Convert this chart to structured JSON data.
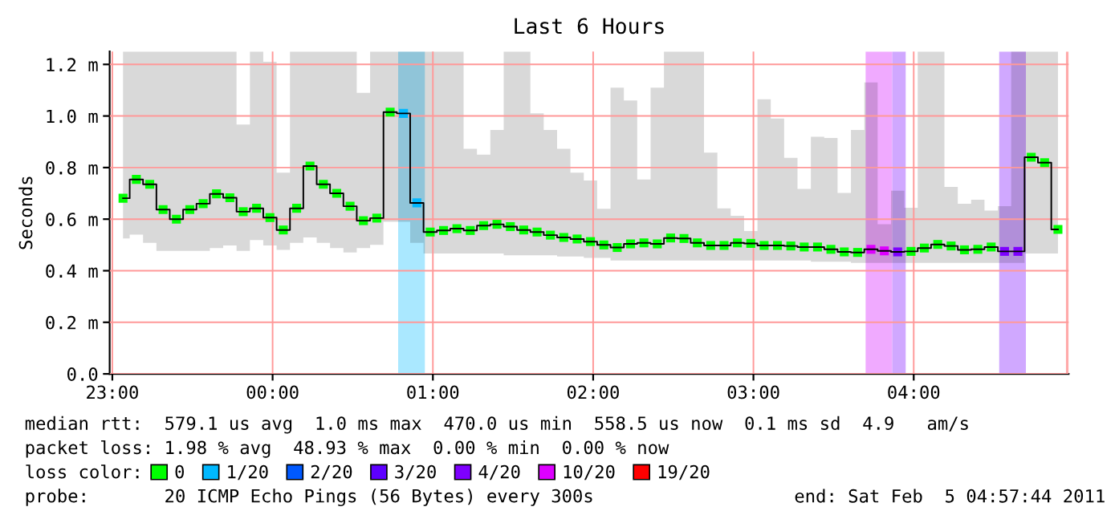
{
  "chart_data": {
    "type": "step",
    "title": "Last 6 Hours",
    "ylabel": "Seconds",
    "legend_title": "loss color:",
    "x": [
      "2011-02-04T23:04",
      "2011-02-04T23:09",
      "2011-02-04T23:14",
      "2011-02-04T23:19",
      "2011-02-04T23:24",
      "2011-02-04T23:29",
      "2011-02-04T23:34",
      "2011-02-04T23:39",
      "2011-02-04T23:44",
      "2011-02-04T23:49",
      "2011-02-04T23:54",
      "2011-02-04T23:59",
      "2011-02-05T00:04",
      "2011-02-05T00:09",
      "2011-02-05T00:14",
      "2011-02-05T00:19",
      "2011-02-05T00:24",
      "2011-02-05T00:29",
      "2011-02-05T00:34",
      "2011-02-05T00:39",
      "2011-02-05T00:44",
      "2011-02-05T00:49",
      "2011-02-05T00:54",
      "2011-02-05T00:59",
      "2011-02-05T01:04",
      "2011-02-05T01:09",
      "2011-02-05T01:14",
      "2011-02-05T01:19",
      "2011-02-05T01:24",
      "2011-02-05T01:29",
      "2011-02-05T01:34",
      "2011-02-05T01:39",
      "2011-02-05T01:44",
      "2011-02-05T01:49",
      "2011-02-05T01:54",
      "2011-02-05T01:59",
      "2011-02-05T02:04",
      "2011-02-05T02:09",
      "2011-02-05T02:14",
      "2011-02-05T02:19",
      "2011-02-05T02:24",
      "2011-02-05T02:29",
      "2011-02-05T02:34",
      "2011-02-05T02:39",
      "2011-02-05T02:44",
      "2011-02-05T02:49",
      "2011-02-05T02:54",
      "2011-02-05T02:59",
      "2011-02-05T03:04",
      "2011-02-05T03:09",
      "2011-02-05T03:14",
      "2011-02-05T03:19",
      "2011-02-05T03:24",
      "2011-02-05T03:29",
      "2011-02-05T03:34",
      "2011-02-05T03:39",
      "2011-02-05T03:44",
      "2011-02-05T03:49",
      "2011-02-05T03:54",
      "2011-02-05T03:59",
      "2011-02-05T04:04",
      "2011-02-05T04:09",
      "2011-02-05T04:14",
      "2011-02-05T04:19",
      "2011-02-05T04:24",
      "2011-02-05T04:29",
      "2011-02-05T04:34",
      "2011-02-05T04:39",
      "2011-02-05T04:44",
      "2011-02-05T04:49",
      "2011-02-05T04:54"
    ],
    "series": [
      {
        "color": "#000000",
        "values": [
          0.681,
          0.754,
          0.735,
          0.637,
          0.6,
          0.637,
          0.66,
          0.698,
          0.683,
          0.629,
          0.642,
          0.606,
          0.558,
          0.642,
          0.806,
          0.735,
          0.7,
          0.65,
          0.594,
          0.604,
          1.015,
          1.01,
          0.663,
          0.55,
          0.556,
          0.563,
          0.556,
          0.575,
          0.58,
          0.571,
          0.558,
          0.55,
          0.538,
          0.529,
          0.523,
          0.513,
          0.5,
          0.49,
          0.504,
          0.508,
          0.504,
          0.527,
          0.525,
          0.508,
          0.498,
          0.498,
          0.508,
          0.506,
          0.498,
          0.498,
          0.496,
          0.492,
          0.492,
          0.483,
          0.473,
          0.471,
          0.483,
          0.477,
          0.473,
          0.475,
          0.488,
          0.502,
          0.496,
          0.481,
          0.483,
          0.492,
          0.475,
          0.475,
          0.84,
          0.819,
          0.56
        ],
        "lower": [
          0.525,
          0.54,
          0.508,
          0.477,
          0.477,
          0.477,
          0.477,
          0.488,
          0.498,
          0.477,
          0.519,
          0.498,
          0.481,
          0.508,
          0.529,
          0.508,
          0.488,
          0.471,
          0.488,
          0.5,
          0.59,
          0.59,
          0.508,
          0.467,
          0.467,
          0.467,
          0.467,
          0.467,
          0.467,
          0.46,
          0.46,
          0.46,
          0.46,
          0.455,
          0.455,
          0.45,
          0.45,
          0.44,
          0.44,
          0.44,
          0.44,
          0.44,
          0.44,
          0.44,
          0.44,
          0.44,
          0.44,
          0.44,
          0.44,
          0.44,
          0.44,
          0.44,
          0.435,
          0.435,
          0.435,
          0.43,
          0.43,
          0.43,
          0.43,
          0.43,
          0.43,
          0.43,
          0.43,
          0.43,
          0.43,
          0.43,
          0.43,
          0.43,
          0.467,
          0.467,
          0.467
        ],
        "upper": [
          1.25,
          1.25,
          1.25,
          1.25,
          1.25,
          1.25,
          1.25,
          1.25,
          1.25,
          0.967,
          1.25,
          1.21,
          0.78,
          1.25,
          1.25,
          1.25,
          1.25,
          1.25,
          1.09,
          1.25,
          1.25,
          1.25,
          1.25,
          1.25,
          1.25,
          1.25,
          0.873,
          0.85,
          0.946,
          1.25,
          1.25,
          1.01,
          0.946,
          0.873,
          0.78,
          0.75,
          0.64,
          1.11,
          1.06,
          0.754,
          1.11,
          1.25,
          1.25,
          1.25,
          0.858,
          0.642,
          0.613,
          0.554,
          1.065,
          0.99,
          0.838,
          0.717,
          0.919,
          0.915,
          0.702,
          0.946,
          1.13,
          0.58,
          0.71,
          0.644,
          1.25,
          1.25,
          0.725,
          0.66,
          0.675,
          0.633,
          0.65,
          1.25,
          1.25,
          1.25,
          1.25
        ]
      },
      {
        "name": "0",
        "type": "scatter",
        "marker": "square",
        "color": "#00ff00",
        "values": [
          0.681,
          0.754,
          0.735,
          0.637,
          0.6,
          0.637,
          0.66,
          0.698,
          0.683,
          0.629,
          0.642,
          0.606,
          0.558,
          0.642,
          0.806,
          0.735,
          0.7,
          0.65,
          0.594,
          0.604,
          1.015,
          null,
          null,
          0.55,
          0.556,
          0.563,
          0.556,
          0.575,
          0.58,
          0.571,
          0.558,
          0.55,
          0.538,
          0.529,
          0.523,
          0.513,
          0.5,
          0.49,
          0.504,
          0.508,
          0.504,
          0.527,
          0.525,
          0.508,
          0.498,
          0.498,
          0.508,
          0.506,
          0.498,
          0.498,
          0.496,
          0.492,
          0.492,
          0.483,
          0.473,
          0.471,
          null,
          null,
          null,
          0.475,
          0.488,
          0.502,
          0.496,
          0.481,
          0.483,
          0.492,
          null,
          null,
          0.84,
          0.819,
          0.56
        ]
      },
      {
        "name": "1/20",
        "type": "scatter",
        "marker": "square",
        "color": "#00b8ff",
        "values": [
          null,
          null,
          null,
          null,
          null,
          null,
          null,
          null,
          null,
          null,
          null,
          null,
          null,
          null,
          null,
          null,
          null,
          null,
          null,
          null,
          null,
          1.01,
          0.663,
          null,
          null,
          null,
          null,
          null,
          null,
          null,
          null,
          null,
          null,
          null,
          null,
          null,
          null,
          null,
          null,
          null,
          null,
          null,
          null,
          null,
          null,
          null,
          null,
          null,
          null,
          null,
          null,
          null,
          null,
          null,
          null,
          null,
          null,
          null,
          null,
          null,
          null,
          null,
          null,
          null,
          null,
          null,
          null,
          null,
          null,
          null,
          null
        ]
      },
      {
        "name": "2/20",
        "type": "scatter",
        "marker": "square",
        "color": "#0059ff",
        "values": [
          null,
          null,
          null,
          null,
          null,
          null,
          null,
          null,
          null,
          null,
          null,
          null,
          null,
          null,
          null,
          null,
          null,
          null,
          null,
          null,
          null,
          null,
          null,
          null,
          null,
          null,
          null,
          null,
          null,
          null,
          null,
          null,
          null,
          null,
          null,
          null,
          null,
          null,
          null,
          null,
          null,
          null,
          null,
          null,
          null,
          null,
          null,
          null,
          null,
          null,
          null,
          null,
          null,
          null,
          null,
          null,
          null,
          null,
          null,
          null,
          null,
          null,
          null,
          null,
          null,
          null,
          null,
          null,
          null,
          null,
          null
        ]
      },
      {
        "name": "3/20",
        "type": "scatter",
        "marker": "square",
        "color": "#5e00ff",
        "values": [
          null,
          null,
          null,
          null,
          null,
          null,
          null,
          null,
          null,
          null,
          null,
          null,
          null,
          null,
          null,
          null,
          null,
          null,
          null,
          null,
          null,
          null,
          null,
          null,
          null,
          null,
          null,
          null,
          null,
          null,
          null,
          null,
          null,
          null,
          null,
          null,
          null,
          null,
          null,
          null,
          null,
          null,
          null,
          null,
          null,
          null,
          null,
          null,
          null,
          null,
          null,
          null,
          null,
          null,
          null,
          null,
          null,
          null,
          null,
          null,
          null,
          null,
          null,
          null,
          null,
          null,
          null,
          null,
          null,
          null,
          null
        ]
      },
      {
        "name": "4/20",
        "type": "scatter",
        "marker": "square",
        "color": "#7e00ff",
        "values": [
          null,
          null,
          null,
          null,
          null,
          null,
          null,
          null,
          null,
          null,
          null,
          null,
          null,
          null,
          null,
          null,
          null,
          null,
          null,
          null,
          null,
          null,
          null,
          null,
          null,
          null,
          null,
          null,
          null,
          null,
          null,
          null,
          null,
          null,
          null,
          null,
          null,
          null,
          null,
          null,
          null,
          null,
          null,
          null,
          null,
          null,
          null,
          null,
          null,
          null,
          null,
          null,
          null,
          null,
          null,
          null,
          null,
          null,
          0.473,
          null,
          null,
          null,
          null,
          null,
          null,
          null,
          0.475,
          0.475,
          null,
          null,
          null
        ]
      },
      {
        "name": "10/20",
        "type": "scatter",
        "marker": "square",
        "color": "#dd00ff",
        "values": [
          null,
          null,
          null,
          null,
          null,
          null,
          null,
          null,
          null,
          null,
          null,
          null,
          null,
          null,
          null,
          null,
          null,
          null,
          null,
          null,
          null,
          null,
          null,
          null,
          null,
          null,
          null,
          null,
          null,
          null,
          null,
          null,
          null,
          null,
          null,
          null,
          null,
          null,
          null,
          null,
          null,
          null,
          null,
          null,
          null,
          null,
          null,
          null,
          null,
          null,
          null,
          null,
          null,
          null,
          null,
          null,
          0.483,
          0.477,
          null,
          null,
          null,
          null,
          null,
          null,
          null,
          null,
          null,
          null,
          null,
          null,
          null
        ]
      },
      {
        "name": "19/20",
        "type": "scatter",
        "marker": "square",
        "color": "#ff0000",
        "values": [
          null,
          null,
          null,
          null,
          null,
          null,
          null,
          null,
          null,
          null,
          null,
          null,
          null,
          null,
          null,
          null,
          null,
          null,
          null,
          null,
          null,
          null,
          null,
          null,
          null,
          null,
          null,
          null,
          null,
          null,
          null,
          null,
          null,
          null,
          null,
          null,
          null,
          null,
          null,
          null,
          null,
          null,
          null,
          null,
          null,
          null,
          null,
          null,
          null,
          null,
          null,
          null,
          null,
          null,
          null,
          null,
          null,
          null,
          null,
          null,
          null,
          null,
          null,
          null,
          null,
          null,
          null,
          null,
          null,
          null,
          null
        ]
      }
    ],
    "bands": [
      {
        "axis": "x",
        "from": "2011-02-05T00:47",
        "to": "2011-02-05T00:57",
        "color": "#aae8ff"
      },
      {
        "axis": "x",
        "from": "2011-02-05T03:42",
        "to": "2011-02-05T03:52",
        "color": "#f0aaff"
      },
      {
        "axis": "x",
        "from": "2011-02-05T03:52",
        "to": "2011-02-05T03:57",
        "color": "#d0a8ff"
      },
      {
        "axis": "x",
        "from": "2011-02-05T04:32",
        "to": "2011-02-05T04:42",
        "color": "#d0a8ff"
      },
      {
        "axis": "x",
        "from": "2011-02-05T04:57",
        "to": "2011-02-05T04:58",
        "color": "#ffaaaa"
      }
    ],
    "xlim": [
      "2011-02-04T22:59",
      "2011-02-05T04:58"
    ],
    "ylim": [
      0,
      1.25
    ],
    "xticks": [
      {
        "value": "2011-02-04T23:00",
        "label": "23:00"
      },
      {
        "value": "2011-02-05T00:00",
        "label": "00:00"
      },
      {
        "value": "2011-02-05T01:00",
        "label": "01:00"
      },
      {
        "value": "2011-02-05T02:00",
        "label": "02:00"
      },
      {
        "value": "2011-02-05T03:00",
        "label": "03:00"
      },
      {
        "value": "2011-02-05T04:00",
        "label": "04:00"
      }
    ],
    "yticks": [
      {
        "value": 0,
        "label": "0.0"
      },
      {
        "value": 0.2,
        "label": "0.2 m"
      },
      {
        "value": 0.4,
        "label": "0.4 m"
      },
      {
        "value": 0.6,
        "label": "0.6 m"
      },
      {
        "value": 0.8,
        "label": "0.8 m"
      },
      {
        "value": 1.0,
        "label": "1.0 m"
      },
      {
        "value": 1.2,
        "label": "1.2 m"
      }
    ],
    "grid": true,
    "legend": "bottom",
    "annotations": [
      "median rtt:  579.1 us avg  1.0 ms max  470.0 us min  558.5 us now  0.1 ms sd  4.9   am/s",
      "packet loss: 1.98 % avg  48.93 % max  0.00 % min  0.00 % now",
      "probe:       20 ICMP Echo Pings (56 Bytes) every 300s",
      "end: Sat Feb  5 04:57:44 2011"
    ]
  }
}
